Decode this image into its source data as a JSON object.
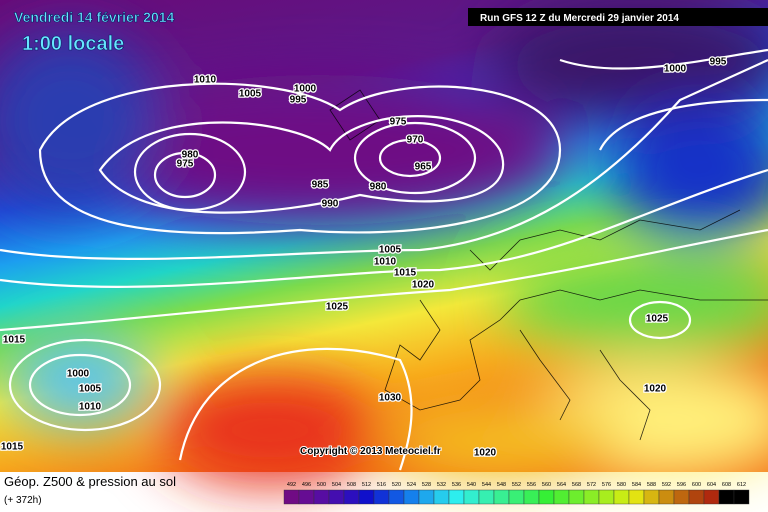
{
  "header": {
    "date": "Vendredi 14 février 2014",
    "time": "1:00 locale",
    "run": "Run GFS 12 Z du Mercredi 29 janvier 2014"
  },
  "copyright": "Copyright © 2013 Meteociel.fr",
  "footer": {
    "title": "Géop. Z500 & pression au sol",
    "subtitle": "(+ 372h)"
  },
  "isobar_labels": [
    "1010",
    "1005",
    "1000",
    "995",
    "1000",
    "995",
    "975",
    "970",
    "965",
    "980",
    "975",
    "985",
    "980",
    "990",
    "1005",
    "1010",
    "1015",
    "1020",
    "1025",
    "1025",
    "1015",
    "1000",
    "1005",
    "1010",
    "1030",
    "1020",
    "1015",
    "1020"
  ],
  "legend": {
    "labels": [
      "492",
      "496",
      "500",
      "504",
      "508",
      "512",
      "516",
      "520",
      "524",
      "528",
      "532",
      "536",
      "540",
      "544",
      "548",
      "552",
      "556",
      "560",
      "564",
      "568",
      "572",
      "576",
      "580",
      "584",
      "588",
      "592",
      "596",
      "600",
      "604",
      "608",
      "612"
    ]
  }
}
